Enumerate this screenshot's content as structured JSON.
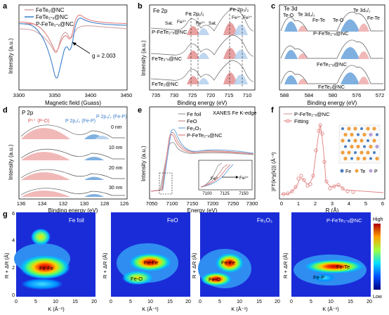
{
  "figure": {
    "panel_letters": [
      "a",
      "b",
      "c",
      "d",
      "e",
      "f",
      "g"
    ]
  },
  "colors": {
    "fete2": "#d0a3a6",
    "fete2x": "#3a7cc9",
    "pfete2x": "#e07f7f",
    "fe2_fill": "#e8a0a0",
    "fe3_fill": "#b8d3ee",
    "blue_fill": "#7fb0e0",
    "pink_fill": "#f1b8b8",
    "fe_foil": "#9a9a9a",
    "feo": "#c49090",
    "fe2o3": "#6aa6e0"
  },
  "panel_a": {
    "legend": [
      "FeTe₂@NC",
      "FeTe₂-ₓ@NC",
      "P-FeTe₂-ₓ@NC"
    ],
    "annotation": "g = 2.003",
    "ylabel": "Intensity (a.u.)",
    "xlabel": "Magnetic field (Guass)",
    "xticks": [
      "3300",
      "3350",
      "3400",
      "3450"
    ]
  },
  "panel_b": {
    "title": "Fe 2p",
    "labels": [
      "Fe 2p₁/₂",
      "Fe 2p₃/₂",
      "Sat.",
      "Fe³⁺",
      "Fe²⁺",
      "Sat.",
      "Fe³⁺",
      "Fe²⁺"
    ],
    "traces": [
      "P-FeTe₂-ₓ@NC",
      "FeTe₂-ₓ@NC",
      "FeTe₂@NC"
    ],
    "ylabel": "Intensity (a.u.)",
    "xlabel": "Binding energy (eV)",
    "xticks": [
      "735",
      "730",
      "725",
      "720",
      "715",
      "710"
    ]
  },
  "panel_c": {
    "title": "Te 3d",
    "labels": [
      "Te-O",
      "Te 3d₃/₂",
      "Fe-Te",
      "Te-O",
      "Te 3d₅/₂",
      "Fe-Te"
    ],
    "traces": [
      "P-FeTe₂-ₓ@NC",
      "FeTe₂-ₓ@NC",
      "FeTe₂@NC"
    ],
    "xlabel": "Binding energy (eV)",
    "xticks": [
      "588",
      "584",
      "580",
      "576",
      "572"
    ]
  },
  "panel_d": {
    "title": "P 2p",
    "labels": [
      "P⁵⁺ (P-O)",
      "P 2p₁/₂ (Fe-P)",
      "P 2p₃/₂ (Fe-P)"
    ],
    "depths": [
      "0 nm",
      "10 nm",
      "20 nm",
      "30 nm"
    ],
    "ylabel": "Intensity (a.u.)",
    "xlabel": "Binding energy (eV)",
    "xticks": [
      "136",
      "134",
      "132",
      "130",
      "128",
      "126"
    ]
  },
  "panel_e": {
    "title": "XANES Fe K-edge",
    "legend": [
      "Fe foil",
      "FeO",
      "Fe₂O₃",
      "P-FeTe₂-ₓ@NC"
    ],
    "inset_labels": [
      "Fe⁰",
      "Fe³⁺"
    ],
    "inset_xticks": [
      "7100",
      "7125",
      "7150"
    ],
    "ylabel": "Intensity (a.u.)",
    "xlabel": "Energy (eV)",
    "xticks": [
      "7050",
      "7100",
      "7150",
      "7200",
      "7250",
      "7300"
    ]
  },
  "panel_f": {
    "legend": [
      "P-FeTe₂-ₓ@NC",
      "Fitting"
    ],
    "crystal_legend": [
      "Fe",
      "Te",
      "P"
    ],
    "ylabel": "|FT(k²χ(k))| (Å⁻³)",
    "xlabel": "R (Å)",
    "xticks": [
      "0",
      "1",
      "2",
      "3",
      "4",
      "5",
      "6"
    ]
  },
  "panel_g": {
    "maps": [
      {
        "title": "Fe foil",
        "labels": [
          "Fe-Fe"
        ]
      },
      {
        "title": "FeO",
        "labels": [
          "Fe-Fe",
          "Fe-O"
        ]
      },
      {
        "title": "Fe₂O₃",
        "labels": [
          "Fe-Fe",
          "Fe-O"
        ]
      },
      {
        "title": "P-FeTe₂-ₓ@NC",
        "labels": [
          "Fe-Te",
          "Fe-P"
        ]
      }
    ],
    "ylabel": "R + ΔR (Å)",
    "xlabel": "K (Å⁻¹)",
    "xticks": [
      "0",
      "5",
      "10",
      "15",
      "20"
    ],
    "yticks": [
      "0",
      "2",
      "4",
      "6"
    ],
    "colorbar": [
      "High",
      "Low"
    ]
  },
  "chart_data": [
    {
      "type": "line",
      "panel": "a",
      "xlabel": "Magnetic field (Guass)",
      "ylabel": "Intensity (a.u.)",
      "xlim": [
        3300,
        3450
      ],
      "series": [
        {
          "name": "FeTe₂@NC",
          "x": [
            3300,
            3320,
            3335,
            3345,
            3352,
            3358,
            3365,
            3372,
            3380,
            3395,
            3420,
            3450
          ],
          "y": [
            0.72,
            0.71,
            0.62,
            0.52,
            0.4,
            0.62,
            0.7,
            0.58,
            0.74,
            0.76,
            0.74,
            0.72
          ]
        },
        {
          "name": "FeTe₂-ₓ@NC",
          "x": [
            3300,
            3320,
            3335,
            3345,
            3352,
            3358,
            3365,
            3372,
            3380,
            3395,
            3420,
            3450
          ],
          "y": [
            0.78,
            0.77,
            0.6,
            0.35,
            0.08,
            0.3,
            0.55,
            0.42,
            0.88,
            0.8,
            0.77,
            0.76
          ]
        },
        {
          "name": "P-FeTe₂-ₓ@NC",
          "x": [
            3300,
            3320,
            3335,
            3345,
            3352,
            3358,
            3365,
            3372,
            3380,
            3395,
            3420,
            3450
          ],
          "y": [
            0.8,
            0.79,
            0.7,
            0.55,
            0.42,
            0.58,
            0.66,
            0.56,
            0.92,
            0.82,
            0.79,
            0.78
          ]
        }
      ]
    }
  ]
}
